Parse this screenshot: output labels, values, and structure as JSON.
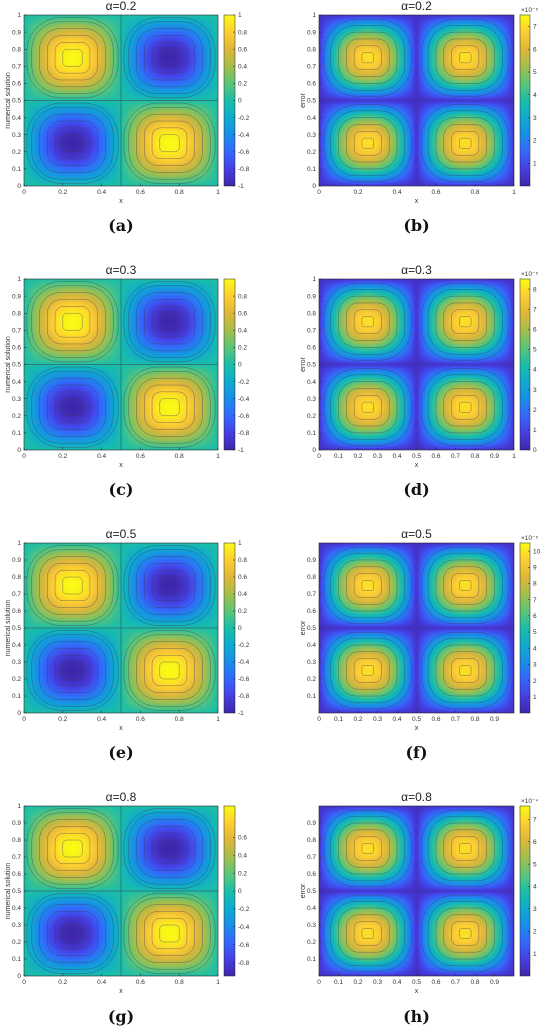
{
  "chart_data": [
    {
      "type": "heatmap",
      "label": "(a)",
      "title": "α=0.2",
      "field": "solution",
      "xlabel": "x",
      "ylabel": "numerical solution",
      "xticks": [
        "0",
        "0.2",
        "0.4",
        "0.6",
        "0.8",
        "1"
      ],
      "yticks": [
        "0",
        "0.1",
        "0.2",
        "0.3",
        "0.4",
        "0.5",
        "0.6",
        "0.7",
        "0.8",
        "0.9",
        "1"
      ],
      "xlim": [
        0,
        1
      ],
      "ylim": [
        0,
        1
      ],
      "cbar_ticks": [
        "-1",
        "-0.8",
        "-0.6",
        "-0.4",
        "-0.2",
        "0",
        "0.2",
        "0.4",
        "0.6",
        "0.8",
        "1"
      ],
      "cbar_range": [
        -1,
        1
      ],
      "cbar_exp": ""
    },
    {
      "type": "heatmap",
      "label": "(b)",
      "title": "α=0.2",
      "field": "error",
      "xlabel": "x",
      "ylabel": "error",
      "xticks": [
        "0",
        "0.2",
        "0.4",
        "0.6",
        "0.8",
        "1"
      ],
      "yticks": [
        "0",
        "0.1",
        "0.2",
        "0.3",
        "0.4",
        "0.5",
        "0.6",
        "0.7",
        "0.8",
        "0.9",
        "1"
      ],
      "xlim": [
        0,
        1
      ],
      "ylim": [
        0,
        1
      ],
      "cbar_ticks": [
        "1",
        "2",
        "3",
        "4",
        "5",
        "6",
        "7"
      ],
      "cbar_range": [
        0,
        7.5
      ],
      "cbar_exp": "×10⁻⁵"
    },
    {
      "type": "heatmap",
      "label": "(c)",
      "title": "α=0.3",
      "field": "solution",
      "xlabel": "x",
      "ylabel": "numerical solution",
      "xticks": [
        "0",
        "0.2",
        "0.4",
        "0.6",
        "0.8",
        "1"
      ],
      "yticks": [
        "0",
        "0.1",
        "0.2",
        "0.3",
        "0.4",
        "0.5",
        "0.6",
        "0.7",
        "0.8",
        "0.9",
        "1"
      ],
      "xlim": [
        0,
        1
      ],
      "ylim": [
        0,
        1
      ],
      "cbar_ticks": [
        "-1",
        "-0.8",
        "-0.6",
        "-0.4",
        "-0.2",
        "0",
        "0.2",
        "0.4",
        "0.6",
        "0.8"
      ],
      "cbar_range": [
        -1,
        1
      ],
      "cbar_exp": ""
    },
    {
      "type": "heatmap",
      "label": "(d)",
      "title": "α=0.3",
      "field": "error",
      "xlabel": "x",
      "ylabel": "error",
      "xticks": [
        "0",
        "0.1",
        "0.2",
        "0.3",
        "0.4",
        "0.5",
        "0.6",
        "0.7",
        "0.8",
        "0.9",
        "1"
      ],
      "yticks": [
        "0",
        "0.1",
        "0.2",
        "0.3",
        "0.4",
        "0.5",
        "0.6",
        "0.7",
        "0.8",
        "0.9",
        "1"
      ],
      "xlim": [
        0,
        1
      ],
      "ylim": [
        0,
        1
      ],
      "cbar_ticks": [
        "0",
        "1",
        "2",
        "3",
        "4",
        "5",
        "6",
        "7",
        "8"
      ],
      "cbar_range": [
        0,
        8.5
      ],
      "cbar_exp": "×10⁻⁵"
    },
    {
      "type": "heatmap",
      "label": "(e)",
      "title": "α=0.5",
      "field": "solution",
      "xlabel": "x",
      "ylabel": "numerical solution",
      "xticks": [
        "0",
        "0.2",
        "0.4",
        "0.6",
        "0.8",
        "1"
      ],
      "yticks": [
        "0",
        "0.1",
        "0.2",
        "0.3",
        "0.4",
        "0.5",
        "0.6",
        "0.7",
        "0.8",
        "0.9",
        "1"
      ],
      "xlim": [
        0,
        1
      ],
      "ylim": [
        0,
        1
      ],
      "cbar_ticks": [
        "-1",
        "-0.8",
        "-0.6",
        "-0.4",
        "-0.2",
        "0",
        "0.2",
        "0.4",
        "0.6",
        "0.8",
        "1"
      ],
      "cbar_range": [
        -1,
        1
      ],
      "cbar_exp": ""
    },
    {
      "type": "heatmap",
      "label": "(f)",
      "title": "α=0.5",
      "field": "error",
      "xlabel": "x",
      "ylabel": "error",
      "xticks": [
        "0",
        "0.1",
        "0.2",
        "0.3",
        "0.4",
        "0.5",
        "0.6",
        "0.7",
        "0.8",
        "0.9"
      ],
      "yticks": [
        "0.1",
        "0.2",
        "0.3",
        "0.4",
        "0.5",
        "0.6",
        "0.7",
        "0.8",
        "0.9"
      ],
      "xlim": [
        0,
        1
      ],
      "ylim": [
        0,
        1
      ],
      "cbar_ticks": [
        "1",
        "2",
        "3",
        "4",
        "5",
        "6",
        "7",
        "8",
        "9",
        "10"
      ],
      "cbar_range": [
        0,
        10.5
      ],
      "cbar_exp": "×10⁻⁵"
    },
    {
      "type": "heatmap",
      "label": "(g)",
      "title": "α=0.8",
      "field": "solution",
      "xlabel": "x",
      "ylabel": "numerical solution",
      "xticks": [
        "0",
        "0.2",
        "0.4",
        "0.6",
        "0.8",
        "1"
      ],
      "yticks": [
        "0",
        "0.1",
        "0.2",
        "0.3",
        "0.4",
        "0.5",
        "0.6",
        "0.7",
        "0.8",
        "0.9",
        "1"
      ],
      "xlim": [
        0,
        1
      ],
      "ylim": [
        0,
        1
      ],
      "cbar_ticks": [
        "-0.8",
        "-0.6",
        "-0.4",
        "-0.2",
        "0",
        "0.2",
        "0.4",
        "0.6"
      ],
      "cbar_range": [
        -0.95,
        0.95
      ],
      "cbar_exp": ""
    },
    {
      "type": "heatmap",
      "label": "(h)",
      "title": "α=0.8",
      "field": "error",
      "xlabel": "x",
      "ylabel": "error",
      "xticks": [
        "0",
        "0.1",
        "0.2",
        "0.3",
        "0.4",
        "0.5",
        "0.6",
        "0.7",
        "0.8",
        "0.9"
      ],
      "yticks": [
        "0.1",
        "0.2",
        "0.3",
        "0.4",
        "0.5",
        "0.6",
        "0.7",
        "0.8",
        "0.9"
      ],
      "xlim": [
        0,
        1
      ],
      "ylim": [
        0,
        1
      ],
      "cbar_ticks": [
        "1",
        "2",
        "3",
        "4",
        "5",
        "6",
        "7"
      ],
      "cbar_range": [
        0,
        7.6
      ],
      "cbar_exp": "×10⁻⁴"
    }
  ],
  "colormap": "parula",
  "contour_color": "#3a3a5a"
}
